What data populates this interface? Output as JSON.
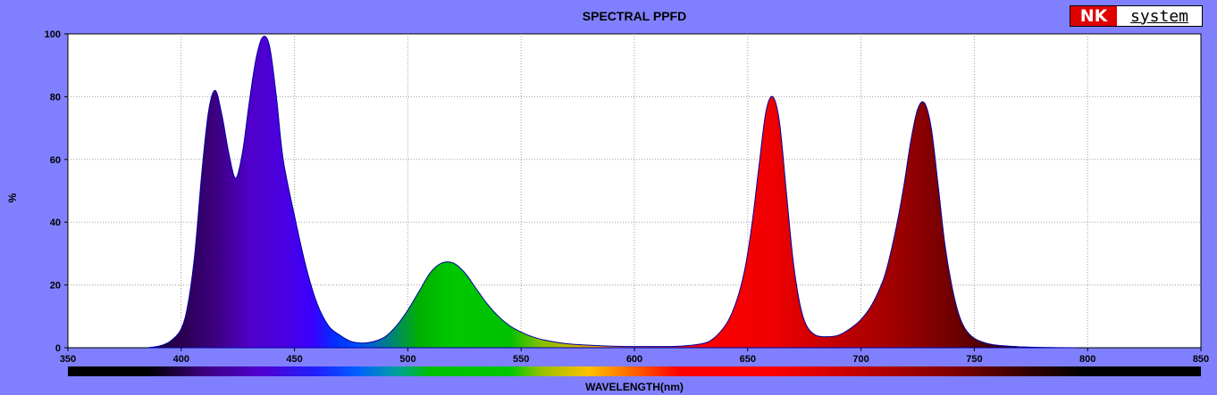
{
  "chart_data": {
    "type": "area",
    "title": "SPECTRAL PPFD",
    "xlabel": "WAVELENGTH(nm)",
    "ylabel": "%",
    "xlim": [
      350,
      850
    ],
    "ylim": [
      0,
      100
    ],
    "xticks": [
      350,
      400,
      450,
      500,
      550,
      600,
      650,
      700,
      750,
      800,
      850
    ],
    "yticks": [
      0,
      20,
      40,
      60,
      80,
      100
    ],
    "grid": true,
    "x": [
      385,
      390,
      395,
      400,
      403,
      406,
      409,
      412,
      415,
      418,
      421,
      424,
      427,
      430,
      433,
      436,
      439,
      442,
      445,
      450,
      455,
      460,
      465,
      470,
      475,
      480,
      485,
      490,
      495,
      500,
      505,
      510,
      515,
      520,
      525,
      530,
      535,
      540,
      545,
      550,
      555,
      560,
      570,
      580,
      590,
      600,
      610,
      620,
      630,
      635,
      640,
      643,
      646,
      649,
      652,
      655,
      658,
      661,
      664,
      667,
      670,
      673,
      676,
      680,
      685,
      690,
      695,
      700,
      705,
      710,
      713,
      716,
      719,
      722,
      725,
      728,
      731,
      734,
      737,
      740,
      743,
      746,
      750,
      755,
      760,
      770,
      780,
      795
    ],
    "values": [
      0,
      0.5,
      2,
      6,
      14,
      30,
      55,
      75,
      82,
      74,
      62,
      54,
      62,
      78,
      92,
      99,
      96,
      80,
      60,
      42,
      26,
      14,
      7,
      4,
      2,
      1.5,
      2,
      3.5,
      7,
      12,
      18,
      24,
      27,
      27,
      24,
      19,
      14,
      10,
      7,
      5,
      3.5,
      2.5,
      1.3,
      0.8,
      0.5,
      0.4,
      0.4,
      0.5,
      1.3,
      3,
      7,
      11,
      17,
      26,
      40,
      58,
      75,
      80,
      72,
      50,
      28,
      14,
      7,
      4,
      3.5,
      4,
      6,
      9,
      14,
      22,
      30,
      40,
      52,
      66,
      76,
      78,
      70,
      52,
      33,
      20,
      11,
      6,
      3,
      1.5,
      0.8,
      0.3,
      0.1,
      0
    ],
    "series_colors": [
      "#2a0040",
      "#5500cc",
      "#3a00f0",
      "#0040ff",
      "#00c000",
      "#00d000",
      "#ffd800",
      "#ff8000",
      "#ff0000",
      "#e00000",
      "#a00000",
      "#600000",
      "#200000"
    ]
  },
  "logo": {
    "nk": "NK",
    "system": "system"
  }
}
